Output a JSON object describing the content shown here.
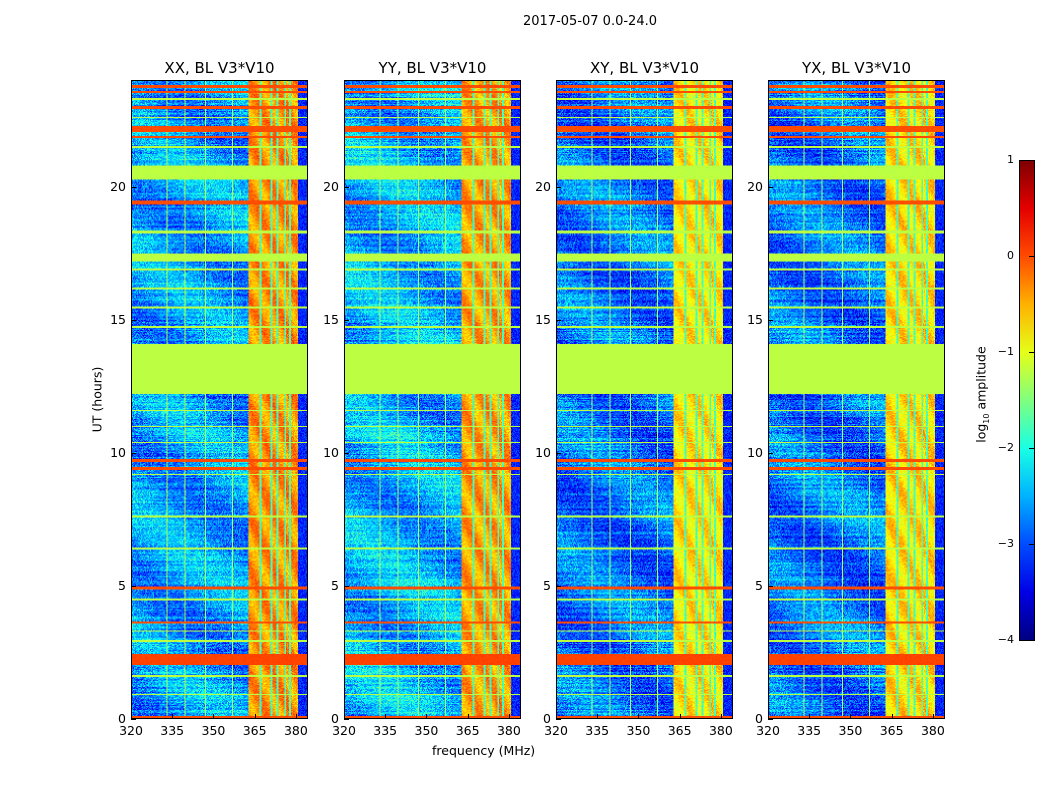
{
  "chart_data": {
    "type": "heatmap",
    "title": "2017-05-07 0.0-24.0",
    "xlabel": "frequency (MHz)",
    "ylabel": "UT (hours)",
    "xlim": [
      320,
      384.4
    ],
    "ylim": [
      0,
      24
    ],
    "xticks": [
      "320",
      "335",
      "350",
      "365",
      "380"
    ],
    "xtick_values": [
      320,
      335,
      350,
      365,
      380
    ],
    "yticks": [
      "0",
      "5",
      "10",
      "15",
      "20"
    ],
    "ytick_values": [
      0,
      5,
      10,
      15,
      20
    ],
    "colorbar": {
      "label_prefix": "log",
      "label_sub": "10",
      "label_suffix": " amplitude",
      "range": [
        -4,
        1
      ],
      "ticks": [
        "1",
        "0",
        "−1",
        "−2",
        "−3",
        "−4"
      ],
      "tick_values": [
        1,
        0,
        -1,
        -2,
        -3,
        -4
      ],
      "colormap": "jet"
    },
    "panels": [
      {
        "title": "XX, BL V3*V10",
        "background": -2.6,
        "rfi_level": -0.35
      },
      {
        "title": "YY, BL V3*V10",
        "background": -2.5,
        "rfi_level": -0.4
      },
      {
        "title": "XY, BL V3*V10",
        "background": -2.8,
        "rfi_level": -0.75
      },
      {
        "title": "YX, BL V3*V10",
        "background": -2.8,
        "rfi_level": -0.7
      }
    ],
    "rfi_channels_mhz": [
      [
        363,
        367
      ],
      [
        367.6,
        371
      ],
      [
        371.6,
        373.2
      ],
      [
        373.8,
        376
      ],
      [
        376.6,
        378
      ],
      [
        378.6,
        381
      ]
    ],
    "quiet_high_band_mhz": [
      381,
      384.4
    ],
    "quiet_high_band_level": -3.2,
    "flagged_interval_hours": [
      12.2,
      14.1
    ],
    "flagged_level": -1.2,
    "time_features": [
      {
        "t": [
          23.75,
          23.85
        ],
        "level": 0.0
      },
      {
        "t": [
          23.55,
          23.62
        ],
        "level": 0.0
      },
      {
        "t": [
          23.3,
          23.36
        ],
        "level": -1.2
      },
      {
        "t": [
          22.95,
          23.05
        ],
        "level": 0.0
      },
      {
        "t": [
          22.6,
          22.66
        ],
        "level": -1.2
      },
      {
        "t": [
          22.1,
          22.3
        ],
        "level": 0.0
      },
      {
        "t": [
          21.85,
          21.95
        ],
        "level": 0.0
      },
      {
        "t": [
          21.5,
          21.56
        ],
        "level": -1.2
      },
      {
        "t": [
          20.3,
          20.8
        ],
        "level": -1.2
      },
      {
        "t": [
          19.35,
          19.5
        ],
        "level": 0.0
      },
      {
        "t": [
          18.25,
          18.35
        ],
        "level": -1.2
      },
      {
        "t": [
          17.2,
          17.5
        ],
        "level": -1.2
      },
      {
        "t": [
          16.85,
          16.93
        ],
        "level": -1.2
      },
      {
        "t": [
          16.15,
          16.22
        ],
        "level": -1.2
      },
      {
        "t": [
          15.45,
          15.52
        ],
        "level": -1.2
      },
      {
        "t": [
          14.7,
          14.76
        ],
        "level": -1.2
      },
      {
        "t": [
          11.55,
          11.62
        ],
        "level": -1.2
      },
      {
        "t": [
          10.95,
          11.02
        ],
        "level": -1.2
      },
      {
        "t": [
          10.35,
          10.42
        ],
        "level": -1.2
      },
      {
        "t": [
          9.65,
          9.75
        ],
        "level": 0.0
      },
      {
        "t": [
          9.35,
          9.45
        ],
        "level": 0.0
      },
      {
        "t": [
          9.15,
          9.21
        ],
        "level": -1.2
      },
      {
        "t": [
          7.55,
          7.62
        ],
        "level": -1.2
      },
      {
        "t": [
          6.35,
          6.42
        ],
        "level": -1.2
      },
      {
        "t": [
          4.85,
          4.95
        ],
        "level": 0.0
      },
      {
        "t": [
          4.45,
          4.52
        ],
        "level": -1.2
      },
      {
        "t": [
          3.55,
          3.65
        ],
        "level": 0.0
      },
      {
        "t": [
          3.25,
          3.32
        ],
        "level": -1.2
      },
      {
        "t": [
          2.85,
          2.92
        ],
        "level": -1.2
      },
      {
        "t": [
          2.0,
          2.4
        ],
        "level": 0.05
      },
      {
        "t": [
          1.55,
          1.62
        ],
        "level": -1.2
      },
      {
        "t": [
          0.85,
          0.92
        ],
        "level": -1.2
      },
      {
        "t": [
          0.0,
          0.08
        ],
        "level": 0.0
      }
    ],
    "freq_lines_mhz": [
      333,
      339.5,
      347,
      357
    ]
  }
}
